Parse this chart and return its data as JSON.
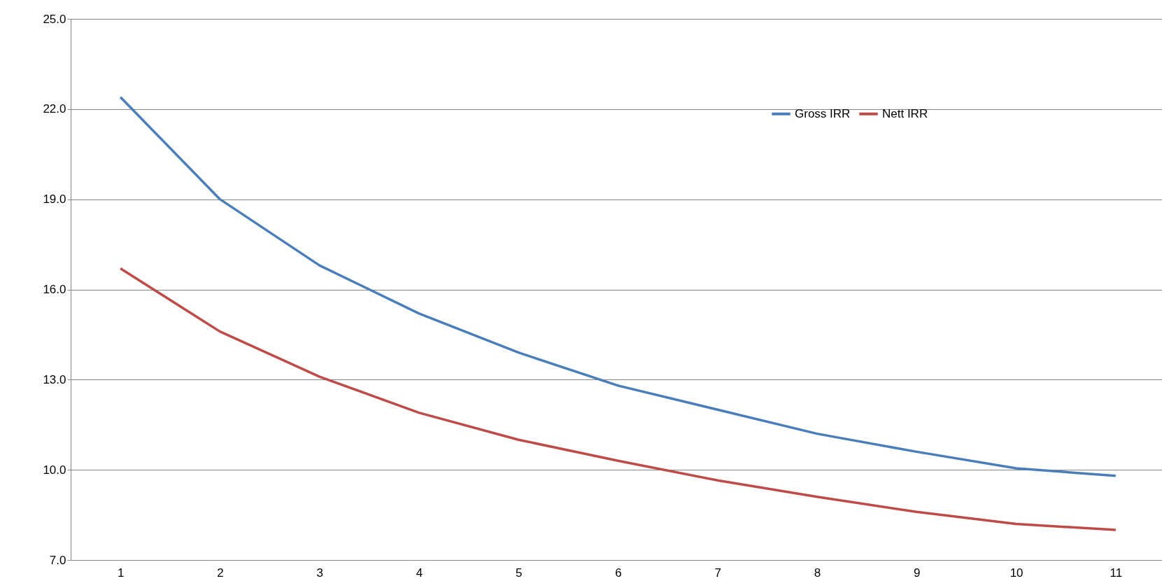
{
  "chart_data": {
    "type": "line",
    "categories": [
      "1",
      "2",
      "3",
      "4",
      "5",
      "6",
      "7",
      "8",
      "9",
      "10",
      "11"
    ],
    "series": [
      {
        "name": "Gross IRR",
        "color": "#4a7ebb",
        "values": [
          22.4,
          19.0,
          16.8,
          15.2,
          13.9,
          12.8,
          12.0,
          11.2,
          10.6,
          10.05,
          9.8
        ]
      },
      {
        "name": "Nett IRR",
        "color": "#be4b48",
        "values": [
          16.7,
          14.6,
          13.1,
          11.9,
          11.0,
          10.3,
          9.65,
          9.1,
          8.6,
          8.2,
          8.0
        ]
      }
    ],
    "ylim": [
      7,
      25
    ],
    "yticks": [
      {
        "value": 7,
        "label": "7.0"
      },
      {
        "value": 10,
        "label": "10.0"
      },
      {
        "value": 13,
        "label": "13.0"
      },
      {
        "value": 16,
        "label": "16.0"
      },
      {
        "value": 19,
        "label": "19.0"
      },
      {
        "value": 22,
        "label": "22.0"
      },
      {
        "value": 25,
        "label": "25.0"
      }
    ],
    "grid": "y",
    "legend": "top right",
    "marker": "none",
    "line_style": "solid"
  }
}
